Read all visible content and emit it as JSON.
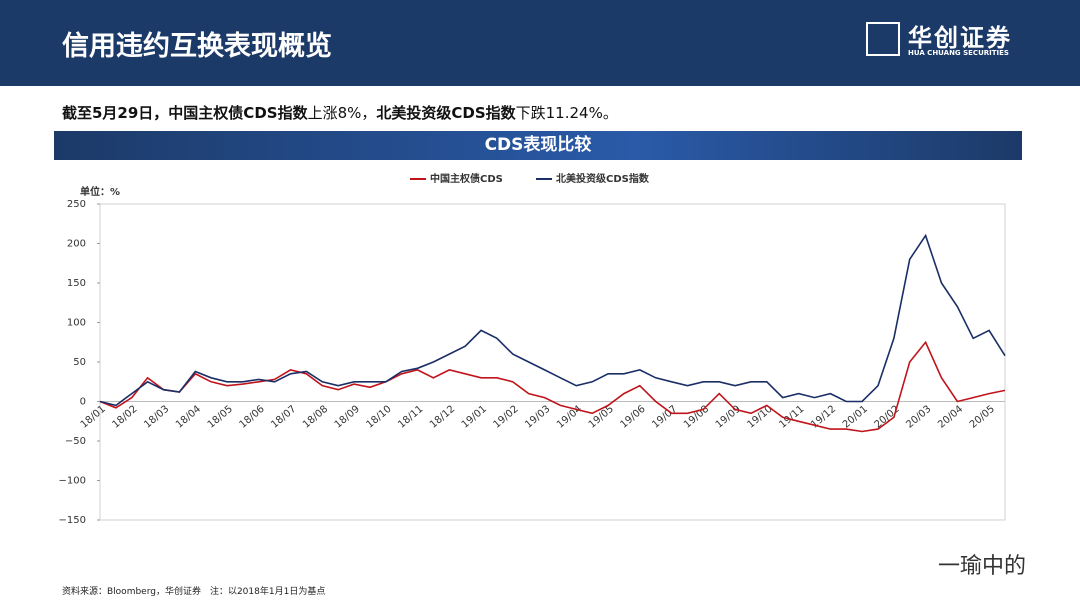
{
  "header": {
    "title": "信用违约互换表现概览",
    "logo": {
      "name": "华创证券",
      "sub": "HUA CHUANG SECURITIES"
    }
  },
  "summary": [
    {
      "text": "截至5月29日，中国主权债CDS指数",
      "bold": true
    },
    {
      "text": "上涨8%，",
      "bold": false
    },
    {
      "text": "北美投资级CDS指数",
      "bold": true
    },
    {
      "text": "下跌11.24%。",
      "bold": false
    }
  ],
  "watermark": "一瑜中的",
  "chart_data": {
    "type": "line",
    "title": "CDS表现比较",
    "y_unit": "单位：%",
    "source": "资料来源：Bloomberg，华创证券　注：以2018年1月1日为基点",
    "categories": [
      "18/01",
      null,
      "18/02",
      null,
      "18/03",
      null,
      "18/04",
      null,
      "18/05",
      null,
      "18/06",
      null,
      "18/07",
      null,
      "18/08",
      null,
      "18/09",
      null,
      "18/10",
      null,
      "18/11",
      null,
      "18/12",
      null,
      "19/01",
      null,
      "19/02",
      null,
      "19/03",
      null,
      "19/04",
      null,
      "19/05",
      null,
      "19/06",
      null,
      "19/07",
      null,
      "19/08",
      null,
      "19/09",
      null,
      "19/10",
      null,
      "19/11",
      null,
      "19/12",
      null,
      "20/01",
      null,
      "20/02",
      null,
      "20/03",
      null,
      "20/04",
      null,
      "20/05",
      null
    ],
    "series": [
      {
        "name": "中国主权债CDS",
        "color": "#c0141c",
        "values": [
          0,
          -8,
          5,
          30,
          15,
          12,
          35,
          25,
          20,
          22,
          25,
          28,
          40,
          35,
          20,
          15,
          22,
          18,
          25,
          35,
          40,
          30,
          40,
          35,
          30,
          30,
          25,
          10,
          5,
          -5,
          -10,
          -15,
          -5,
          10,
          20,
          0,
          -15,
          -15,
          -10,
          10,
          -10,
          -15,
          -5,
          -20,
          -25,
          -30,
          -35,
          -35,
          -38,
          -35,
          -20,
          50,
          75,
          30,
          0,
          5,
          10,
          14
        ]
      },
      {
        "name": "北美投资级CDS指数",
        "color": "#1b2f66",
        "values": [
          0,
          -5,
          10,
          25,
          15,
          12,
          38,
          30,
          25,
          25,
          28,
          25,
          35,
          38,
          25,
          20,
          25,
          25,
          25,
          38,
          42,
          50,
          60,
          70,
          90,
          80,
          60,
          50,
          40,
          30,
          20,
          25,
          35,
          35,
          40,
          30,
          25,
          20,
          25,
          25,
          20,
          25,
          25,
          5,
          10,
          5,
          10,
          0,
          0,
          20,
          80,
          180,
          210,
          150,
          120,
          80,
          90,
          58
        ]
      }
    ],
    "ylim": [
      -150,
      250
    ],
    "yticks": [
      {
        "value": -150,
        "label": "−150"
      },
      {
        "value": -100,
        "label": "−100"
      },
      {
        "value": -50,
        "label": "−50"
      },
      0,
      50,
      100,
      150,
      200,
      250
    ],
    "grid": false
  }
}
